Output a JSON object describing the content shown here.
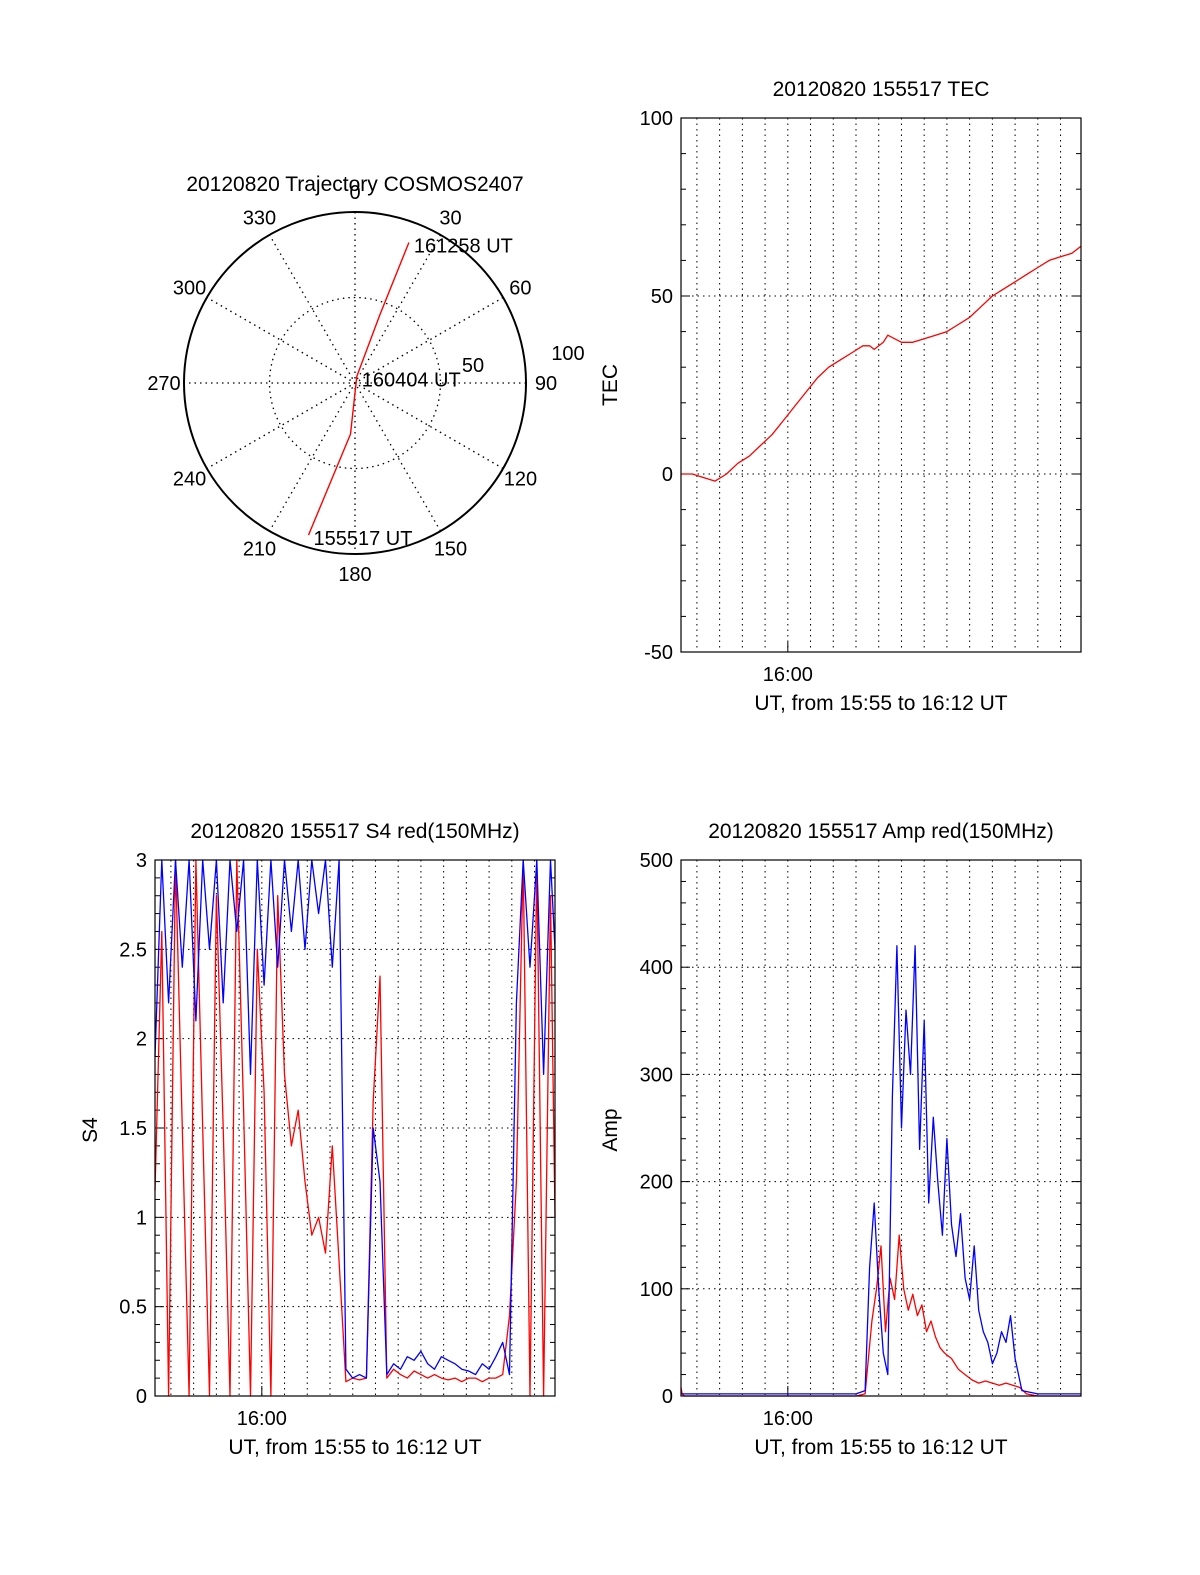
{
  "figure": {
    "background": "#ffffff",
    "colors": {
      "red": "#ff0000",
      "blue": "#0000ff",
      "axis": "#000000",
      "grid": "#000000"
    }
  },
  "chart_data": [
    {
      "id": "trajectory",
      "type": "polar",
      "title": "20120820 Trajectory COSMOS2407",
      "angle_labels": [
        "0",
        "30",
        "60",
        "90",
        "120",
        "150",
        "180",
        "210",
        "240",
        "270",
        "300",
        "330"
      ],
      "radial_labels": [
        "50",
        "100"
      ],
      "radial_range": [
        0,
        100
      ],
      "grid": true,
      "series": [
        {
          "color": "#ff0000",
          "points": [
            {
              "az": 197,
              "r": 93
            },
            {
              "az": 185,
              "r": 30
            },
            {
              "az": 15,
              "r": 4
            },
            {
              "az": 20,
              "r": 42
            },
            {
              "az": 21,
              "r": 88
            }
          ]
        }
      ],
      "annotations": [
        {
          "text": "161258 UT",
          "az": 21,
          "r": 88
        },
        {
          "text": "160404 UT",
          "az": 15,
          "r": 4
        },
        {
          "text": "155517 UT",
          "az": 197,
          "r": 93
        }
      ]
    },
    {
      "id": "tec",
      "type": "line",
      "title": "20120820 155517 TEC",
      "xlabel": "UT, from 15:55 to 16:12 UT",
      "ylabel": "TEC",
      "xlim": [
        955.3,
        972.9
      ],
      "ylim": [
        -50,
        100
      ],
      "yticks": [
        "-50",
        "0",
        "50",
        "100"
      ],
      "xticks": [
        {
          "x": 960,
          "label": "16:00"
        }
      ],
      "grid": true,
      "series": [
        {
          "color": "#ff0000",
          "x": [
            955.3,
            955.8,
            956.3,
            956.8,
            957.3,
            957.8,
            958.3,
            958.8,
            959.3,
            959.8,
            960.3,
            960.8,
            961.3,
            961.8,
            962.3,
            962.8,
            963.3,
            963.6,
            963.8,
            964.2,
            964.4,
            965.0,
            965.5,
            966.0,
            966.5,
            967.0,
            967.5,
            968.0,
            968.5,
            969.0,
            969.5,
            970.0,
            970.5,
            971.0,
            971.5,
            972.0,
            972.5,
            972.9
          ],
          "y": [
            0,
            0,
            -1,
            -2,
            0,
            3,
            5,
            8,
            11,
            15,
            19,
            23,
            27,
            30,
            32,
            34,
            36,
            36,
            35,
            37,
            39,
            37,
            37,
            38,
            39,
            40,
            42,
            44,
            47,
            50,
            52,
            54,
            56,
            58,
            60,
            61,
            62,
            64
          ]
        }
      ]
    },
    {
      "id": "s4",
      "type": "line",
      "title": "20120820 155517 S4 red(150MHz)",
      "xlabel": "UT, from 15:55 to 16:12 UT",
      "ylabel": "S4",
      "xlim": [
        955.3,
        972.9
      ],
      "ylim": [
        0,
        3
      ],
      "yticks": [
        "0",
        "0.5",
        "1",
        "1.5",
        "2",
        "2.5",
        "3"
      ],
      "xticks": [
        {
          "x": 960,
          "label": "16:00"
        }
      ],
      "grid": true,
      "series": [
        {
          "color": "#ff0000",
          "x": [
            955.3,
            955.6,
            955.9,
            956.2,
            956.5,
            956.8,
            957.1,
            957.4,
            957.7,
            958.0,
            958.3,
            958.6,
            958.9,
            959.2,
            959.5,
            959.8,
            960.1,
            960.4,
            960.7,
            961.0,
            961.3,
            961.6,
            961.9,
            962.2,
            962.5,
            962.8,
            963.1,
            963.4,
            963.7,
            964.0,
            964.3,
            964.6,
            964.9,
            965.2,
            965.5,
            965.8,
            966.1,
            966.4,
            966.7,
            967.0,
            967.3,
            967.6,
            967.9,
            968.2,
            968.5,
            968.8,
            969.1,
            969.4,
            969.7,
            970.0,
            970.3,
            970.6,
            970.9,
            971.2,
            971.5,
            971.8,
            972.1,
            972.4,
            972.7,
            972.9
          ],
          "y": [
            1.15,
            2.6,
            0.0,
            3.0,
            1.5,
            0.0,
            3.0,
            1.5,
            0.0,
            2.8,
            1.5,
            0.0,
            3.0,
            1.6,
            0.0,
            2.5,
            1.7,
            0.0,
            2.8,
            1.8,
            1.4,
            1.6,
            1.2,
            0.9,
            1.0,
            0.8,
            1.4,
            0.75,
            0.08,
            0.1,
            0.09,
            0.1,
            1.65,
            2.35,
            0.1,
            0.15,
            0.12,
            0.1,
            0.14,
            0.12,
            0.1,
            0.12,
            0.1,
            0.09,
            0.1,
            0.08,
            0.1,
            0.1,
            0.08,
            0.1,
            0.1,
            0.12,
            0.45,
            1.2,
            3.0,
            0.0,
            3.0,
            0.0,
            2.8,
            1.0
          ]
        },
        {
          "color": "#0000ff",
          "x": [
            955.3,
            955.6,
            955.9,
            956.2,
            956.5,
            956.8,
            957.1,
            957.4,
            957.7,
            958.0,
            958.3,
            958.6,
            958.9,
            959.2,
            959.5,
            959.8,
            960.1,
            960.4,
            960.7,
            961.0,
            961.3,
            961.6,
            961.9,
            962.2,
            962.5,
            962.8,
            963.1,
            963.4,
            963.7,
            964.0,
            964.3,
            964.6,
            964.9,
            965.2,
            965.5,
            965.8,
            966.1,
            966.4,
            966.7,
            967.0,
            967.3,
            967.6,
            967.9,
            968.2,
            968.5,
            968.8,
            969.1,
            969.4,
            969.7,
            970.0,
            970.3,
            970.6,
            970.9,
            971.2,
            971.5,
            971.8,
            972.1,
            972.4,
            972.7,
            972.9
          ],
          "y": [
            1.9,
            3.0,
            2.2,
            3.0,
            2.4,
            3.0,
            2.1,
            3.0,
            2.5,
            3.0,
            2.2,
            3.0,
            2.6,
            3.0,
            1.8,
            3.0,
            2.3,
            3.0,
            2.4,
            3.0,
            2.6,
            3.0,
            2.5,
            3.0,
            2.7,
            3.0,
            2.4,
            3.0,
            0.15,
            0.1,
            0.12,
            0.1,
            1.5,
            1.2,
            0.12,
            0.18,
            0.15,
            0.22,
            0.2,
            0.25,
            0.18,
            0.15,
            0.22,
            0.2,
            0.18,
            0.15,
            0.14,
            0.12,
            0.18,
            0.15,
            0.22,
            0.3,
            0.12,
            2.2,
            3.0,
            2.4,
            3.0,
            1.8,
            3.0,
            2.5
          ]
        }
      ]
    },
    {
      "id": "amp",
      "type": "line",
      "title": "20120820 155517 Amp red(150MHz)",
      "xlabel": "UT, from 15:55 to 16:12 UT",
      "ylabel": "Amp",
      "xlim": [
        955.3,
        972.9
      ],
      "ylim": [
        0,
        500
      ],
      "yticks": [
        "0",
        "100",
        "200",
        "300",
        "400",
        "500"
      ],
      "xticks": [
        {
          "x": 960,
          "label": "16:00"
        }
      ],
      "grid": true,
      "series": [
        {
          "color": "#ff0000",
          "x": [
            955.3,
            955.35,
            955.45,
            956.0,
            960.0,
            963.0,
            963.4,
            963.7,
            963.9,
            964.1,
            964.3,
            964.5,
            964.7,
            964.9,
            965.1,
            965.3,
            965.5,
            965.7,
            965.9,
            966.1,
            966.3,
            966.5,
            966.7,
            966.9,
            967.2,
            967.5,
            967.8,
            968.1,
            968.4,
            968.7,
            969.0,
            969.3,
            969.6,
            969.9,
            970.2,
            970.5,
            971.0,
            972.0,
            972.9
          ],
          "y": [
            8,
            2,
            0,
            0,
            0,
            0,
            2,
            70,
            100,
            140,
            60,
            110,
            90,
            150,
            100,
            80,
            95,
            75,
            85,
            60,
            70,
            55,
            45,
            40,
            35,
            25,
            20,
            15,
            12,
            14,
            12,
            10,
            12,
            10,
            8,
            2,
            0,
            0,
            0
          ]
        },
        {
          "color": "#0000ff",
          "x": [
            955.3,
            956.0,
            960.0,
            963.0,
            963.4,
            963.6,
            963.8,
            964.0,
            964.2,
            964.4,
            964.6,
            964.8,
            965.0,
            965.2,
            965.4,
            965.6,
            965.8,
            966.0,
            966.2,
            966.4,
            966.6,
            966.8,
            967.0,
            967.2,
            967.4,
            967.6,
            967.8,
            968.0,
            968.2,
            968.4,
            968.6,
            968.8,
            969.0,
            969.2,
            969.4,
            969.6,
            969.8,
            970.0,
            970.3,
            971.0,
            972.9
          ],
          "y": [
            2,
            2,
            2,
            2,
            5,
            120,
            180,
            100,
            40,
            20,
            280,
            420,
            250,
            360,
            300,
            420,
            230,
            350,
            180,
            260,
            200,
            150,
            240,
            160,
            130,
            170,
            110,
            90,
            140,
            80,
            60,
            50,
            30,
            40,
            60,
            50,
            75,
            35,
            5,
            2,
            2
          ]
        }
      ]
    }
  ]
}
